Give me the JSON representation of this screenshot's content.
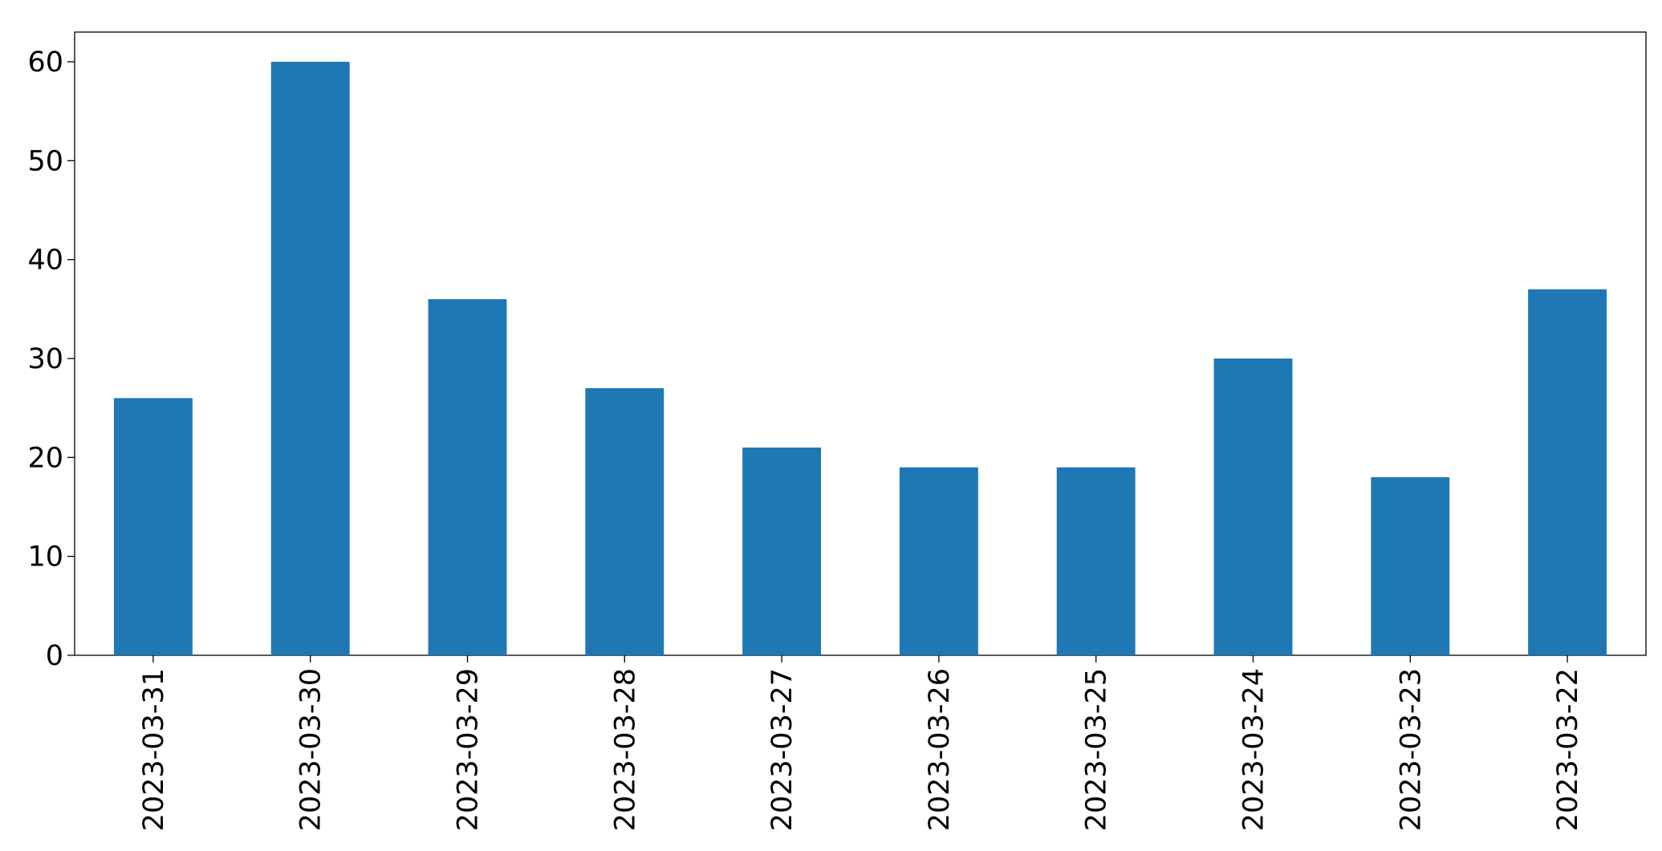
{
  "chart_data": {
    "type": "bar",
    "categories": [
      "2023-03-31",
      "2023-03-30",
      "2023-03-29",
      "2023-03-28",
      "2023-03-27",
      "2023-03-26",
      "2023-03-25",
      "2023-03-24",
      "2023-03-23",
      "2023-03-22"
    ],
    "values": [
      26,
      60,
      36,
      27,
      21,
      19,
      19,
      30,
      18,
      37
    ],
    "color": "#1f77b4",
    "ylim": [
      0,
      63
    ],
    "yticks": [
      0,
      10,
      20,
      30,
      40,
      50,
      60
    ],
    "grid": false
  }
}
